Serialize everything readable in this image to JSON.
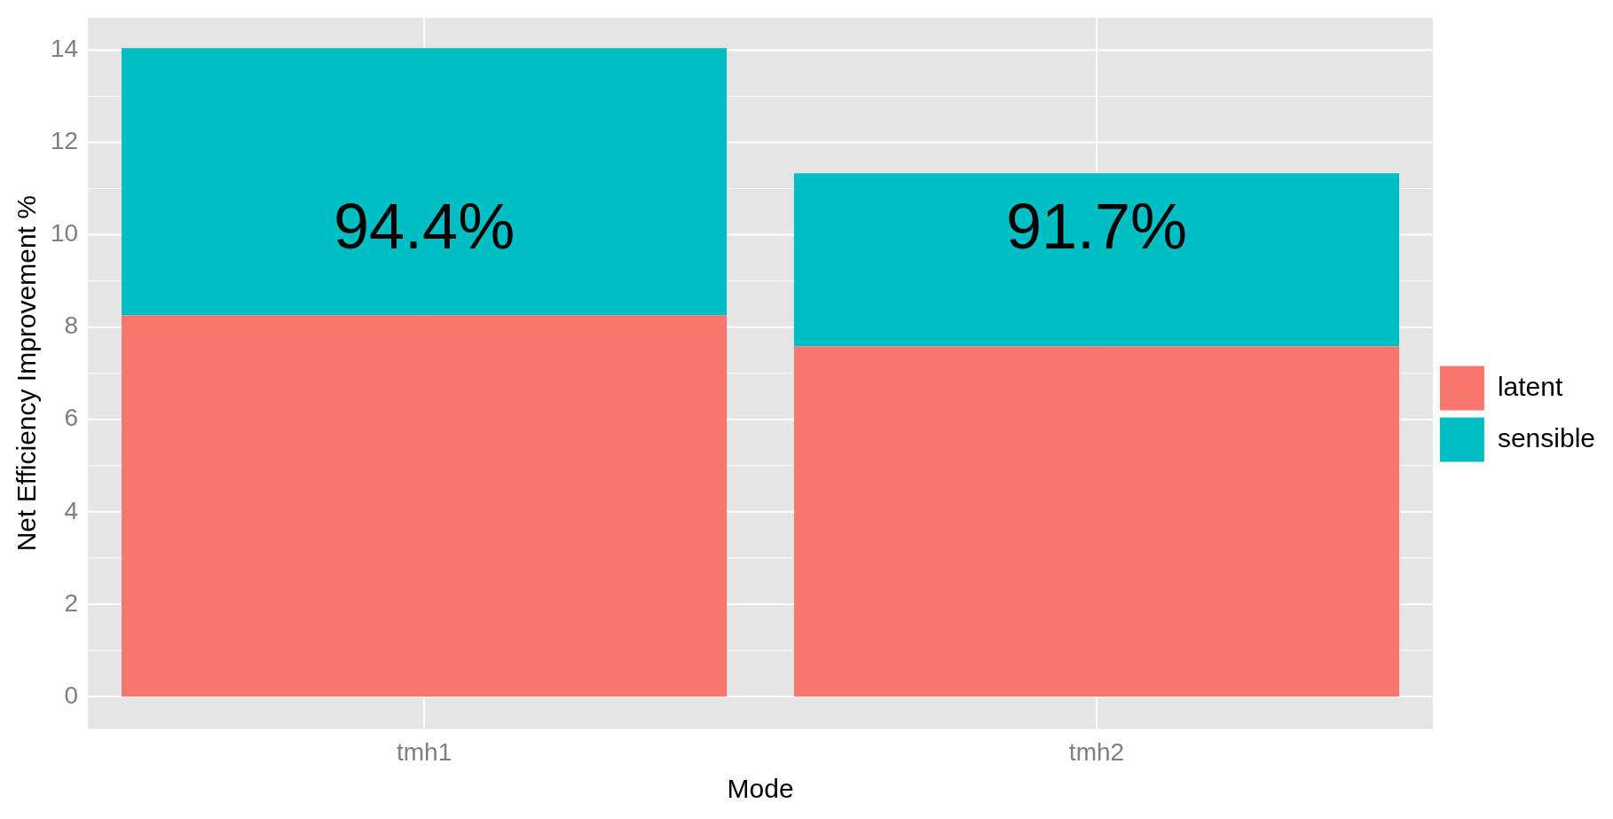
{
  "chart_data": {
    "type": "bar",
    "stacked": true,
    "xlabel": "Mode",
    "ylabel": "Net Efficiency Improvement %",
    "categories": [
      "tmh1",
      "tmh2"
    ],
    "series": [
      {
        "name": "latent",
        "color": "#f8766d",
        "values": [
          8.26,
          7.58
        ]
      },
      {
        "name": "sensible",
        "color": "#00bfc4",
        "values": [
          5.78,
          3.75
        ]
      }
    ],
    "ylim": [
      -0.7,
      14.7
    ],
    "yticks": [
      0,
      2,
      4,
      6,
      8,
      10,
      12,
      14
    ],
    "grid": true,
    "legend": "right",
    "annotations": [
      "94.4%",
      "91.7%"
    ]
  }
}
